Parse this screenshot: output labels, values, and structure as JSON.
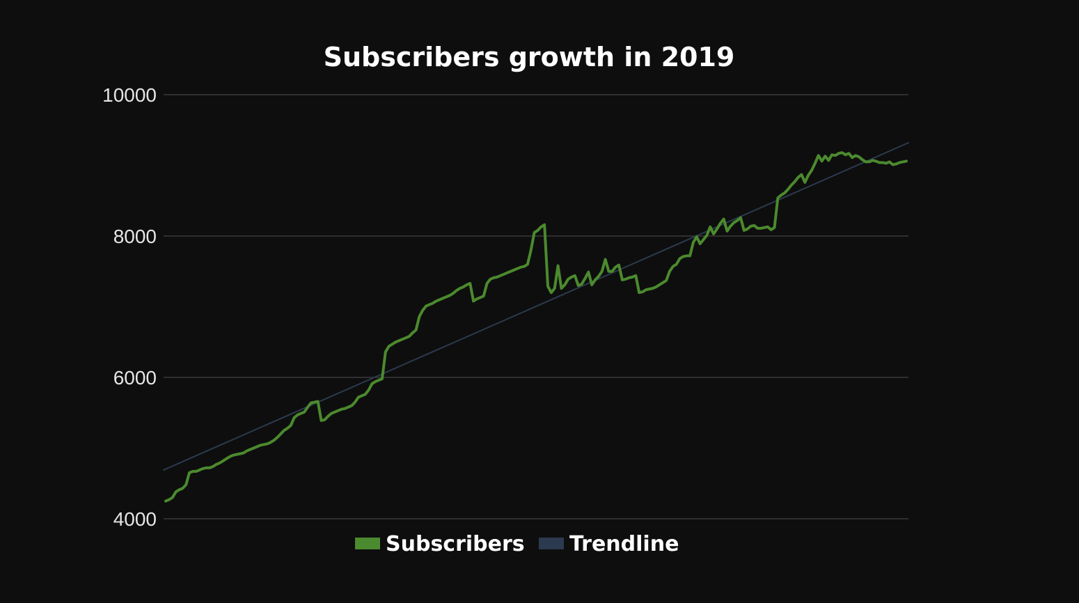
{
  "chart_data": {
    "type": "line",
    "title": "Subscribers growth in 2019",
    "xlabel": "",
    "ylabel": "",
    "ylim": [
      4000,
      10000
    ],
    "yticks": [
      "4000",
      "6000",
      "8000",
      "10000"
    ],
    "grid": true,
    "legend_position": "bottom-center",
    "series": [
      {
        "name": "Subscribers",
        "color": "#4b8a2e",
        "values": [
          4250,
          4270,
          4300,
          4380,
          4410,
          4430,
          4480,
          4650,
          4670,
          4670,
          4690,
          4710,
          4720,
          4720,
          4740,
          4770,
          4790,
          4820,
          4850,
          4880,
          4900,
          4910,
          4920,
          4930,
          4960,
          4980,
          5000,
          5020,
          5040,
          5050,
          5060,
          5080,
          5110,
          5150,
          5200,
          5250,
          5280,
          5320,
          5430,
          5470,
          5490,
          5510,
          5580,
          5640,
          5650,
          5660,
          5390,
          5400,
          5450,
          5490,
          5510,
          5530,
          5550,
          5560,
          5580,
          5600,
          5650,
          5720,
          5740,
          5760,
          5820,
          5910,
          5940,
          5960,
          5980,
          6360,
          6440,
          6470,
          6500,
          6520,
          6540,
          6560,
          6580,
          6630,
          6670,
          6860,
          6950,
          7010,
          7030,
          7050,
          7080,
          7100,
          7120,
          7140,
          7160,
          7190,
          7230,
          7260,
          7280,
          7310,
          7330,
          7080,
          7110,
          7130,
          7150,
          7330,
          7390,
          7410,
          7420,
          7440,
          7460,
          7480,
          7500,
          7520,
          7540,
          7560,
          7570,
          7600,
          7800,
          8050,
          8080,
          8130,
          8160,
          7290,
          7200,
          7260,
          7580,
          7260,
          7310,
          7390,
          7420,
          7440,
          7300,
          7320,
          7400,
          7490,
          7310,
          7380,
          7430,
          7500,
          7670,
          7500,
          7500,
          7560,
          7590,
          7380,
          7390,
          7410,
          7420,
          7440,
          7200,
          7210,
          7240,
          7250,
          7260,
          7280,
          7310,
          7340,
          7370,
          7500,
          7570,
          7600,
          7680,
          7710,
          7720,
          7720,
          7910,
          7990,
          7890,
          7950,
          8010,
          8130,
          8030,
          8100,
          8180,
          8240,
          8070,
          8140,
          8190,
          8220,
          8260,
          8080,
          8100,
          8140,
          8150,
          8110,
          8110,
          8120,
          8130,
          8090,
          8120,
          8540,
          8580,
          8610,
          8660,
          8720,
          8770,
          8830,
          8870,
          8760,
          8860,
          8930,
          9030,
          9140,
          9060,
          9130,
          9070,
          9150,
          9140,
          9170,
          9180,
          9150,
          9170,
          9110,
          9140,
          9120,
          9080,
          9050,
          9050,
          9070,
          9060,
          9040,
          9040,
          9030,
          9050,
          9010,
          9020,
          9040,
          9050,
          9060
        ]
      },
      {
        "name": "Trendline",
        "color": "#2c3a4f",
        "values": [
          4690,
          9320
        ]
      }
    ]
  }
}
